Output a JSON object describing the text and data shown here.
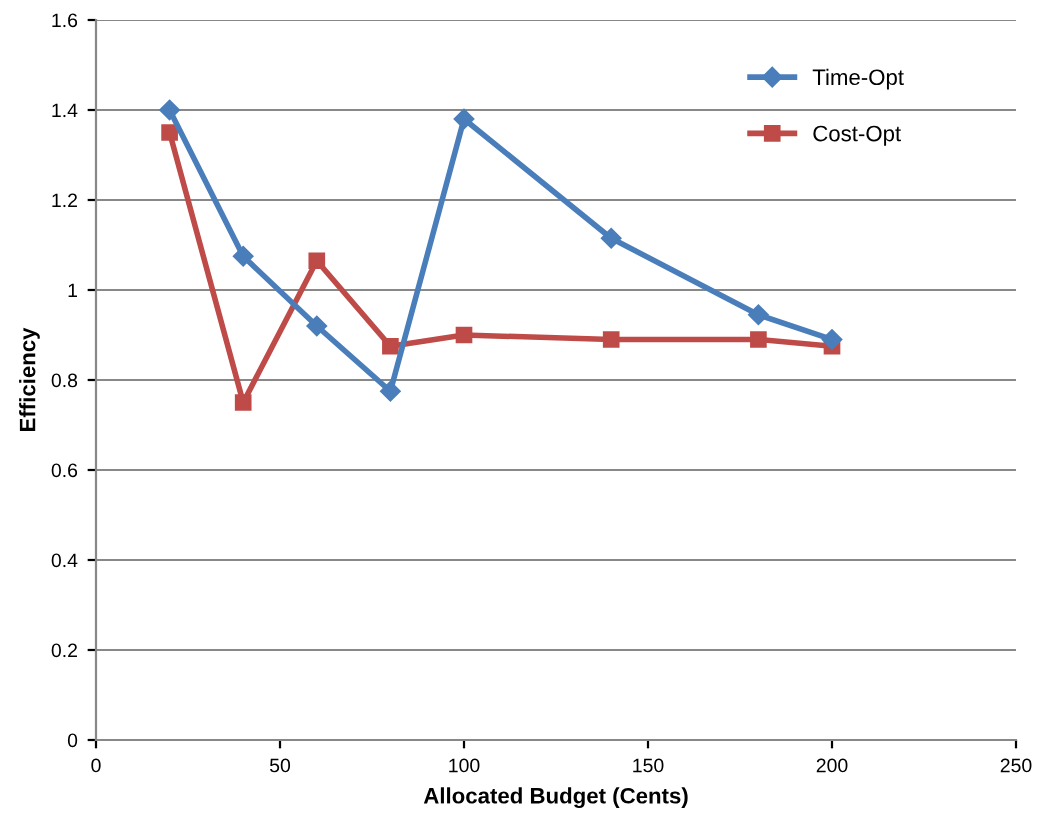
{
  "chart_data": {
    "type": "line",
    "xlabel": "Allocated Budget (Cents)",
    "ylabel": "Efficiency",
    "x": [
      20,
      40,
      60,
      80,
      100,
      140,
      180,
      200
    ],
    "series": [
      {
        "name": "Time-Opt",
        "color": "#4a7ebb",
        "marker": "diamond",
        "values": [
          1.4,
          1.075,
          0.92,
          0.775,
          1.38,
          1.115,
          0.945,
          0.89
        ]
      },
      {
        "name": "Cost-Opt",
        "color": "#be4b48",
        "marker": "square",
        "values": [
          1.35,
          0.75,
          1.065,
          0.875,
          0.9,
          0.89,
          0.89,
          0.875
        ]
      }
    ],
    "xlim": [
      0,
      250
    ],
    "xticks": [
      0,
      50,
      100,
      150,
      200,
      250
    ],
    "ylim": [
      0,
      1.6
    ],
    "yticks": [
      0,
      0.2,
      0.4,
      0.6,
      0.8,
      1,
      1.2,
      1.4,
      1.6
    ],
    "grid": "y",
    "legend": "top right",
    "line_style": "solid"
  }
}
